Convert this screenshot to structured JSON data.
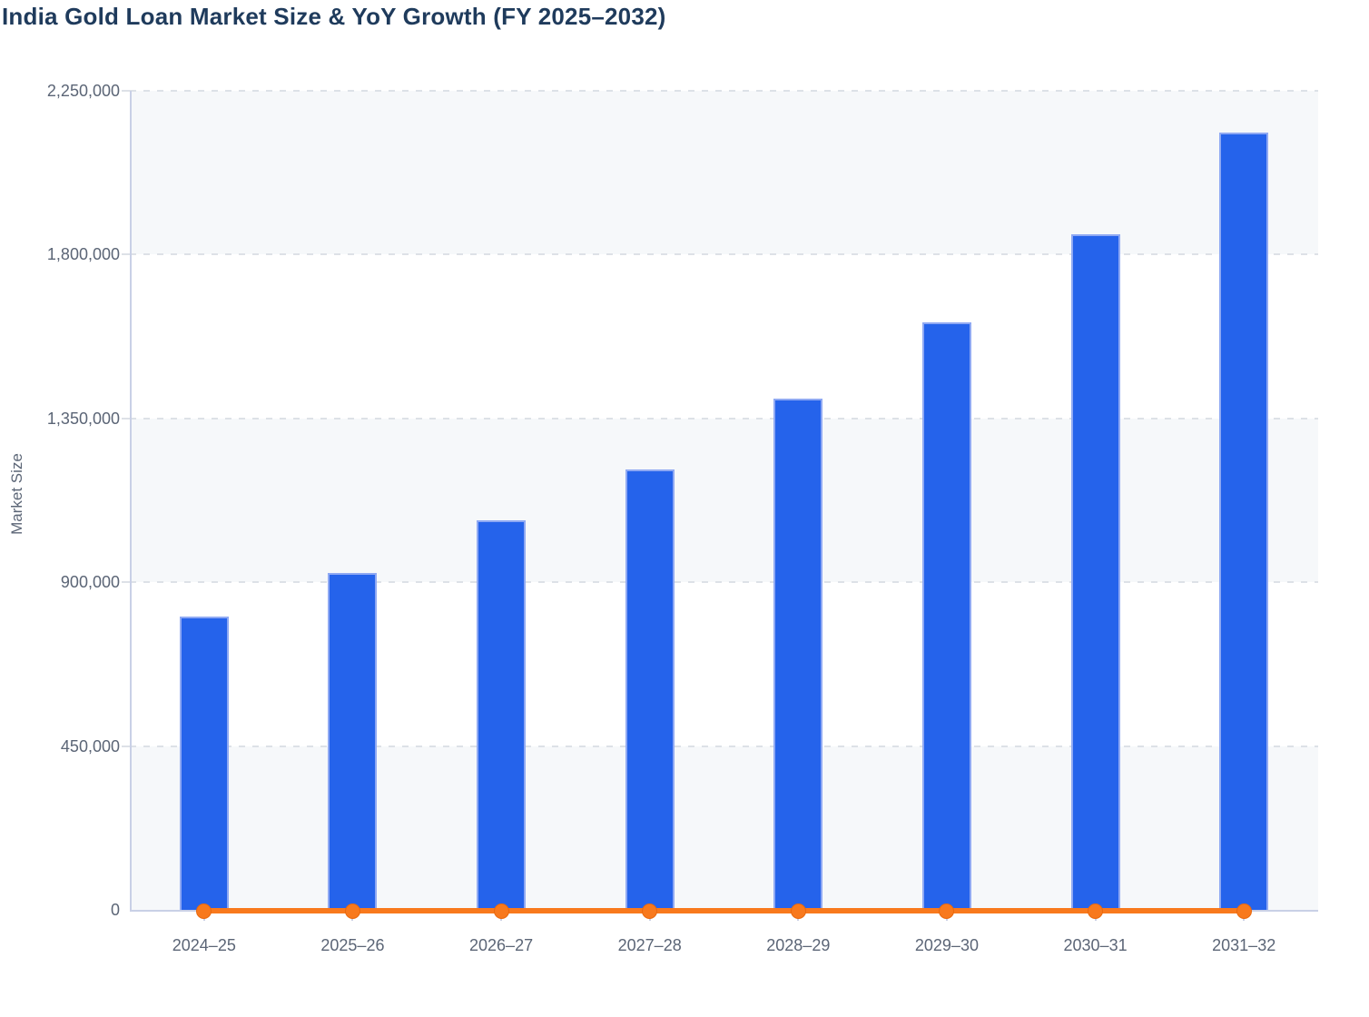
{
  "title": "India Gold Loan Market Size & YoY Growth (FY 2025–2032)",
  "colors": {
    "title_text": "#1f3b5c",
    "axis_text": "#5b6576",
    "bar_fill": "#2563eb",
    "bar_border": "#8fa9f3",
    "line": "#f8791d",
    "marker_stroke": "#e8690f",
    "band_fill": "#f6f8fa",
    "gridline": "#dde1e7",
    "axis_line": "#c9d0e6"
  },
  "chart_data": {
    "type": "bar",
    "title": "India Gold Loan Market Size & YoY Growth (FY 2025–2032)",
    "xlabel": "",
    "ylabel": "Market Size",
    "categories": [
      "2024–25",
      "2025–26",
      "2026–27",
      "2027–28",
      "2028–29",
      "2029–30",
      "2030–31",
      "2031–32"
    ],
    "series": [
      {
        "name": "Market Size",
        "type": "bar",
        "values": [
          805000,
          925000,
          1070000,
          1210000,
          1405000,
          1615000,
          1855000,
          2135000
        ]
      },
      {
        "name": "YoY Growth",
        "type": "line",
        "values": [
          0,
          0,
          0,
          0,
          0,
          0,
          0,
          0
        ],
        "note": "Orange line with round markers renders flat on the baseline; growth values are negligible relative to the market-size axis scale and are not readable from the chart."
      }
    ],
    "ylim": [
      0,
      2250000
    ],
    "ytick_step": 450000,
    "ytick_labels": [
      "0",
      "450,000",
      "900,000",
      "1,350,000",
      "1,800,000",
      "2,250,000"
    ],
    "grid": "dashed horizontal gridlines, alternating background bands",
    "legend_position": "none"
  }
}
